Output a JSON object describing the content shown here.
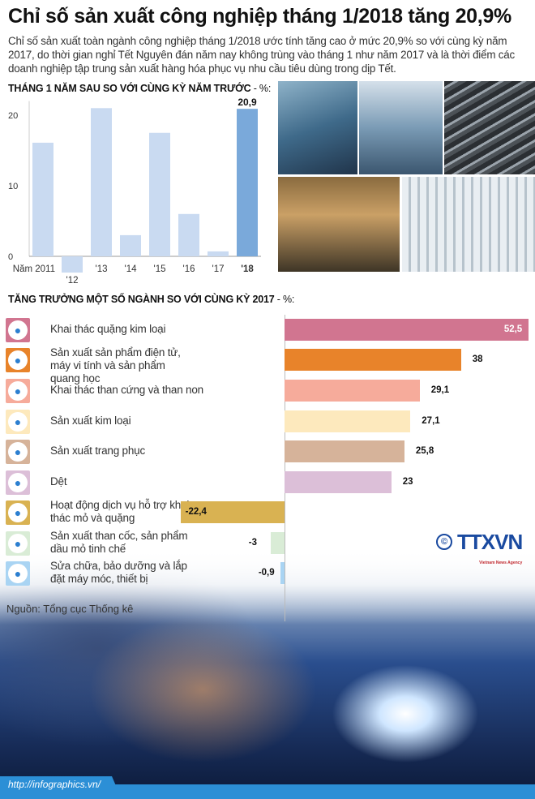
{
  "header": {
    "title": "Chỉ số sản xuất công nghiệp tháng 1/2018 tăng 20,9%",
    "lead": "Chỉ số sản xuất toàn ngành công nghiệp tháng 1/2018 ước tính tăng cao ở mức 20,9% so với cùng kỳ năm 2017, do thời gian nghỉ Tết Nguyên đán năm nay không trùng vào tháng 1 như năm 2017 và là thời điểm các doanh nghiệp tập trung sản xuất hàng hóa phục vụ nhu cầu tiêu dùng trong dịp Tết."
  },
  "chart_data": [
    {
      "type": "bar",
      "title": "THÁNG 1 NĂM SAU SO VỚI CÙNG KỲ NĂM TRƯỚC",
      "unit": "- %:",
      "categories": [
        "Năm 2011",
        "'12",
        "'13",
        "'14",
        "'15",
        "'16",
        "'17",
        "'18"
      ],
      "values": [
        16.1,
        -2.3,
        21,
        3,
        17.5,
        6,
        0.7,
        20.9
      ],
      "data_labels": {
        "'18": "20,9"
      },
      "yticks": [
        "0",
        "10",
        "20"
      ],
      "ylim": [
        -3,
        22
      ],
      "colors": {
        "default": "#c9daf1",
        "highlight": "#7aa9da"
      }
    },
    {
      "type": "bar",
      "orientation": "horizontal",
      "title": "TĂNG TRƯỞNG MỘT SỐ NGÀNH SO VỚI CÙNG KỲ 2017",
      "unit": "- %:",
      "categories": [
        {
          "label": "Khai thác quặng kim loại",
          "icon": "pickaxe-icon",
          "color": "#d17590"
        },
        {
          "label": "Sản xuất sản phẩm điện tử, máy vi tính và sản phẩm quang học",
          "icon": "computer-icon",
          "color": "#e8832a"
        },
        {
          "label": "Khai thác than cứng và than non",
          "icon": "coal-cart-icon",
          "color": "#f6ab9b"
        },
        {
          "label": "Sản xuất kim loại",
          "icon": "tools-icon",
          "color": "#fde9bd"
        },
        {
          "label": "Sản xuất trang phục",
          "icon": "shirt-icon",
          "color": "#d6b39a"
        },
        {
          "label": "Dệt",
          "icon": "textile-icon",
          "color": "#dcbfd8"
        },
        {
          "label": "Hoạt động dịch vụ hỗ trợ khai thác mỏ và quặng",
          "icon": "recycle-icon",
          "color": "#d9b252"
        },
        {
          "label": "Sản xuất than cốc, sản phẩm dầu mỏ tinh chế",
          "icon": "factory-icon",
          "color": "#d9ecd6"
        },
        {
          "label": "Sửa chữa, bảo dưỡng và lắp đặt máy móc, thiết bị",
          "icon": "wrench-hand-icon",
          "color": "#a9d4f3"
        }
      ],
      "values": [
        52.5,
        38,
        29.1,
        27.1,
        25.8,
        23,
        -22.4,
        -3,
        -0.9
      ],
      "value_labels": [
        "52,5",
        "38",
        "29,1",
        "27,1",
        "25,8",
        "23",
        "-22,4",
        "-3",
        "-0,9"
      ]
    }
  ],
  "source": "Nguồn: Tổng cục Thống kê",
  "logo": {
    "text": "TTXVN",
    "sub": "Vietnam News Agency",
    "copyright": "©"
  },
  "footer": {
    "url": "http://infographics.vn/"
  }
}
